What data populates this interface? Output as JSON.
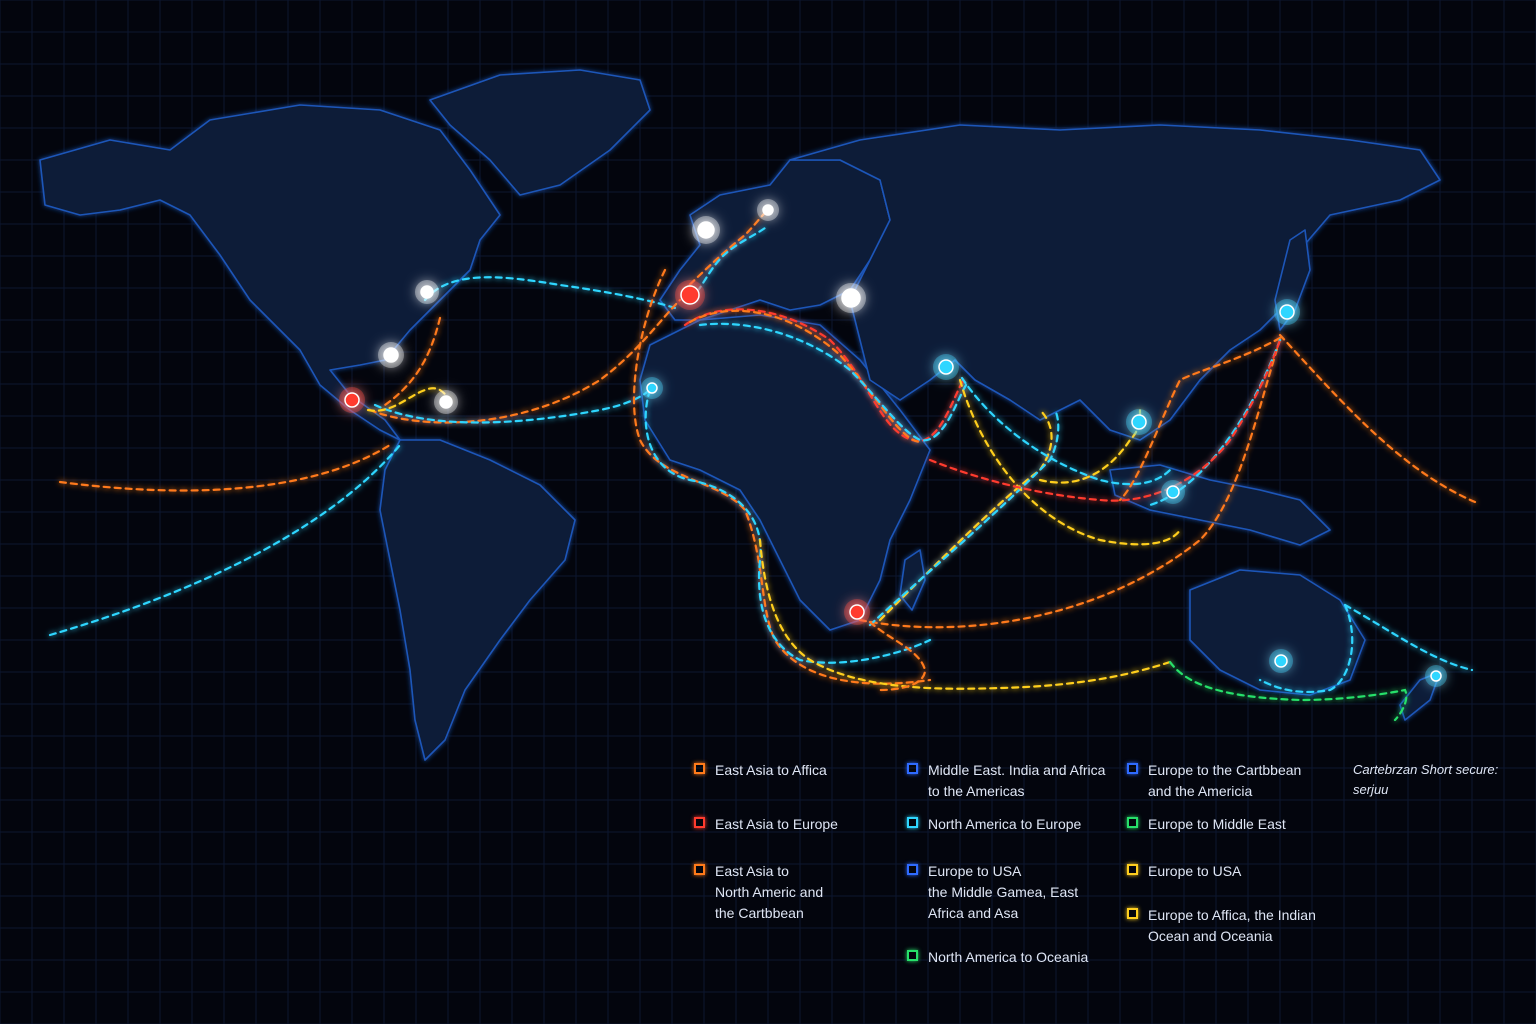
{
  "map": {
    "route_color_keys": [
      "orange",
      "red",
      "cyan",
      "yellow",
      "green"
    ],
    "colors": {
      "orange": "#ff7a1a",
      "red": "#ff3b2e",
      "cyan": "#2fd6ff",
      "yellow": "#ffcf1f",
      "green": "#27e06a",
      "blue": "#2f6bff",
      "land_stroke": "#1f56b8",
      "land_fill": "#0a1a38",
      "background": "#03050d"
    },
    "ports": [
      {
        "name": "red-port",
        "color": "red"
      },
      {
        "name": "white-port",
        "color": "white"
      },
      {
        "name": "cyan-port",
        "color": "cyan"
      }
    ]
  },
  "legend": {
    "items": [
      {
        "label": "East Asia to Affica",
        "color": "#ff7a1a"
      },
      {
        "label": "East Asia to Europe",
        "color": "#ff3b2e"
      },
      {
        "label": "East Asia to\nNorth Americ and\nthe Cartbbean",
        "color": "#ff7a1a"
      },
      {
        "label": "Middle East. India and Africa\nto the Americas",
        "color": "#2f6bff"
      },
      {
        "label": "North America to Europe",
        "color": "#2fd6ff"
      },
      {
        "label": "Europe to USA\nthe Middle Gamea,  East\nAfrica and Asa",
        "color": "#2f6bff"
      },
      {
        "label": "North America to Oceania",
        "color": "#27e06a"
      },
      {
        "label": "Europe to the Cartbbean\nand the Americia",
        "color": "#2f6bff"
      },
      {
        "label": "Europe to Middle East",
        "color": "#27e06a"
      },
      {
        "label": "Europe to USA",
        "color": "#ffcf1f"
      },
      {
        "label": "Europe to Affica, the Indian\nOcean and Oceania",
        "color": "#ffcf1f"
      }
    ],
    "note": "Cartebrzan Short secure:\nserjuu"
  }
}
